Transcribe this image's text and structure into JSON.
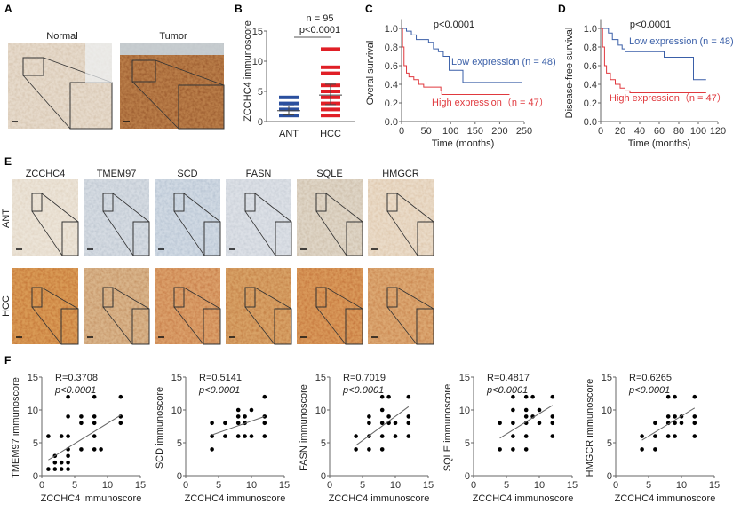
{
  "panels": {
    "A": {
      "label": "A",
      "normal_title": "Normal",
      "tumor_title": "Tumor"
    },
    "B": {
      "label": "B"
    },
    "C": {
      "label": "C"
    },
    "D": {
      "label": "D"
    },
    "E": {
      "label": "E",
      "row_labels": [
        "ANT",
        "HCC"
      ],
      "column_titles": [
        "ZCCHC4",
        "TMEM97",
        "SCD",
        "FASN",
        "SQLE",
        "HMGCR"
      ]
    },
    "F": {
      "label": "F"
    }
  },
  "colors": {
    "low": "#3a5fa8",
    "high": "#e0393e",
    "ant_dot": "#2a4f9e",
    "hcc_dot": "#e01f26",
    "ant_tissue": [
      "#ece4d8",
      "#d5dbe2",
      "#d0d9e3",
      "#dce0e6",
      "#dfd5c6",
      "#eadbc8"
    ],
    "hcc_tissue": [
      "#d99a55",
      "#d9b48a",
      "#dba06a",
      "#d8a266",
      "#d9995a",
      "#dca872"
    ],
    "normal_tissue": "#e6dacb",
    "tumor_tissue": "#b97d48"
  },
  "chart_data": [
    {
      "type": "scatter",
      "panel": "B",
      "ylabel": "ZCCHC4 immunoscore",
      "categories": [
        "ANT",
        "HCC"
      ],
      "ylim": [
        0,
        15
      ],
      "yticks": [
        "0",
        "5",
        "10",
        "15"
      ],
      "annotation_n": "n = 95",
      "annotation_p": "p<0.0001",
      "series": [
        {
          "category": "ANT",
          "values": [
            1,
            2,
            3,
            4
          ],
          "mean": 1.8,
          "sd": [
            1.1,
            2.6
          ]
        },
        {
          "category": "HCC",
          "values": [
            1,
            2,
            3,
            4,
            5,
            6,
            8,
            9,
            12
          ],
          "mean": 4.4,
          "sd": [
            2.8,
            6.2
          ]
        }
      ]
    },
    {
      "type": "line",
      "panel": "C",
      "ylabel": "Overal survival",
      "xlabel": "Time (months)",
      "xlim": [
        0,
        250
      ],
      "ylim": [
        0,
        1.0
      ],
      "xticks": [
        "0",
        "50",
        "100",
        "150",
        "200",
        "250"
      ],
      "yticks": [
        "0.0",
        "0.2",
        "0.4",
        "0.6",
        "0.8",
        "1.0"
      ],
      "annotation_p": "p<0.0001",
      "series": [
        {
          "name": "Low expression (n = 48)",
          "x": [
            0,
            10,
            20,
            30,
            55,
            65,
            75,
            85,
            97,
            125,
            245
          ],
          "y": [
            1,
            0.97,
            0.93,
            0.88,
            0.85,
            0.78,
            0.75,
            0.7,
            0.55,
            0.42,
            0.42
          ]
        },
        {
          "name": "High expression（n = 47）",
          "x": [
            0,
            2,
            5,
            10,
            15,
            25,
            35,
            45,
            80,
            82,
            220
          ],
          "y": [
            1,
            0.8,
            0.6,
            0.52,
            0.48,
            0.45,
            0.4,
            0.37,
            0.33,
            0.29,
            0.29
          ]
        }
      ]
    },
    {
      "type": "line",
      "panel": "D",
      "ylabel": "Disease-free survival",
      "xlabel": "Time (months)",
      "xlim": [
        0,
        120
      ],
      "ylim": [
        0,
        1.0
      ],
      "xticks": [
        "0",
        "20",
        "40",
        "60",
        "80",
        "100",
        "120"
      ],
      "yticks": [
        "0.0",
        "0.2",
        "0.4",
        "0.6",
        "0.8",
        "1.0"
      ],
      "annotation_p": "p<0.0001",
      "series": [
        {
          "name": "Low expression (n = 48)",
          "x": [
            0,
            8,
            12,
            18,
            22,
            25,
            65,
            95,
            108
          ],
          "y": [
            1,
            0.95,
            0.88,
            0.82,
            0.78,
            0.75,
            0.69,
            0.45,
            0.45
          ]
        },
        {
          "name": "High expression（n = 47）",
          "x": [
            0,
            2,
            4,
            6,
            10,
            15,
            20,
            25,
            30,
            108
          ],
          "y": [
            1,
            0.8,
            0.6,
            0.52,
            0.45,
            0.4,
            0.36,
            0.33,
            0.31,
            0.31
          ]
        }
      ]
    },
    {
      "type": "scatter",
      "panel": "F",
      "xlabel": "ZCCHC4 immunoscore",
      "ylabel": "TMEM97 immunoscore",
      "xlim": [
        0,
        15
      ],
      "ylim": [
        0,
        15
      ],
      "xticks": [
        "0",
        "5",
        "10",
        "15"
      ],
      "yticks": [
        "0",
        "5",
        "10",
        "15"
      ],
      "r": "R=0.3708",
      "p": "p<0.0001",
      "x": [
        1,
        1,
        2,
        2,
        2,
        3,
        3,
        3,
        4,
        4,
        4,
        4,
        4,
        4,
        4,
        6,
        6,
        6,
        8,
        8,
        8,
        8,
        8,
        9,
        12,
        12,
        12
      ],
      "y": [
        1,
        6,
        1,
        2,
        3,
        1,
        2,
        6,
        1,
        2,
        3,
        4,
        6,
        9,
        12,
        4,
        8,
        9,
        4,
        6,
        8,
        9,
        12,
        4,
        8,
        9,
        12
      ],
      "fit": [
        [
          1,
          2.4
        ],
        [
          12,
          9.2
        ]
      ]
    },
    {
      "type": "scatter",
      "panel": "F",
      "xlabel": "ZCCHC4 immunoscore",
      "ylabel": "SCD immunoscore",
      "xlim": [
        0,
        15
      ],
      "ylim": [
        0,
        15
      ],
      "xticks": [
        "0",
        "5",
        "10",
        "15"
      ],
      "yticks": [
        "0",
        "5",
        "10",
        "15"
      ],
      "r": "R=0.5141",
      "p": "p<0.0001",
      "x": [
        4,
        4,
        4,
        6,
        6,
        8,
        8,
        8,
        8,
        9,
        9,
        9,
        10,
        10,
        12,
        12,
        12,
        12
      ],
      "y": [
        4,
        6,
        8,
        6,
        8,
        6,
        8,
        9,
        10,
        6,
        8,
        9,
        6,
        10,
        6,
        8,
        9,
        12
      ],
      "fit": [
        [
          4,
          6.2
        ],
        [
          12,
          9
        ]
      ]
    },
    {
      "type": "scatter",
      "panel": "F",
      "xlabel": "ZCCHC4 immunoscore",
      "ylabel": "FASN immunoscore",
      "xlim": [
        0,
        15
      ],
      "ylim": [
        0,
        15
      ],
      "xticks": [
        "0",
        "5",
        "10",
        "15"
      ],
      "yticks": [
        "0",
        "5",
        "10",
        "15"
      ],
      "r": "R=0.7019",
      "p": "p<0.0001",
      "x": [
        4,
        4,
        6,
        6,
        6,
        6,
        8,
        8,
        8,
        8,
        8,
        9,
        9,
        9,
        10,
        10,
        12,
        12,
        12,
        12
      ],
      "y": [
        4,
        6,
        4,
        6,
        8,
        9,
        4,
        6,
        8,
        10,
        12,
        8,
        9,
        12,
        6,
        8,
        6,
        8,
        9,
        12
      ],
      "fit": [
        [
          4,
          4.6
        ],
        [
          12,
          10.5
        ]
      ]
    },
    {
      "type": "scatter",
      "panel": "F",
      "xlabel": "ZCCHC4 immunoscore",
      "ylabel": "SQLE immunoscore",
      "xlim": [
        0,
        15
      ],
      "ylim": [
        0,
        15
      ],
      "xticks": [
        "0",
        "5",
        "10",
        "15"
      ],
      "yticks": [
        "0",
        "5",
        "10",
        "15"
      ],
      "r": "R=0.4817",
      "p": "p<0.0001",
      "x": [
        4,
        4,
        6,
        6,
        6,
        6,
        6,
        8,
        8,
        8,
        8,
        8,
        8,
        9,
        9,
        10,
        10,
        12,
        12,
        12,
        12
      ],
      "y": [
        4,
        8,
        4,
        6,
        8,
        10,
        12,
        4,
        6,
        8,
        9,
        10,
        12,
        9,
        12,
        8,
        10,
        6,
        8,
        9,
        12
      ],
      "fit": [
        [
          4,
          5.7
        ],
        [
          12,
          10.7
        ]
      ]
    },
    {
      "type": "scatter",
      "panel": "F",
      "xlabel": "ZCCHC4 immunoscore",
      "ylabel": "HMGCR immunoscore",
      "xlim": [
        0,
        15
      ],
      "ylim": [
        0,
        15
      ],
      "xticks": [
        "0",
        "5",
        "10",
        "15"
      ],
      "yticks": [
        "0",
        "5",
        "10",
        "15"
      ],
      "r": "R=0.6265",
      "p": "p<0.0001",
      "x": [
        4,
        4,
        6,
        6,
        6,
        8,
        8,
        8,
        8,
        9,
        9,
        9,
        9,
        10,
        10,
        12,
        12,
        12,
        12
      ],
      "y": [
        4,
        6,
        4,
        6,
        8,
        6,
        8,
        9,
        12,
        6,
        8,
        9,
        12,
        8,
        9,
        6,
        8,
        9,
        12
      ],
      "fit": [
        [
          4,
          5.4
        ],
        [
          12,
          10.3
        ]
      ]
    }
  ]
}
